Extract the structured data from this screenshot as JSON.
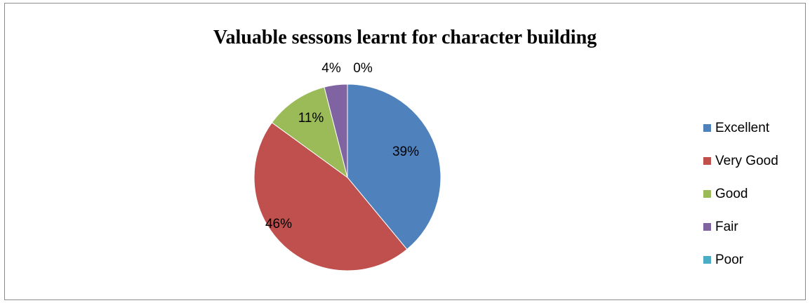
{
  "chart_data": {
    "type": "pie",
    "title": "Valuable sessons learnt for character building",
    "categories": [
      "Excellent",
      "Very Good",
      "Good",
      "Fair",
      "Poor"
    ],
    "values": [
      39,
      46,
      11,
      4,
      0
    ],
    "labels": [
      "39%",
      "46%",
      "11%",
      "4%",
      "0%"
    ],
    "colors": [
      "#4f81bd",
      "#c0504d",
      "#9bbb59",
      "#8064a2",
      "#4bacc6"
    ],
    "legend_position": "right"
  }
}
